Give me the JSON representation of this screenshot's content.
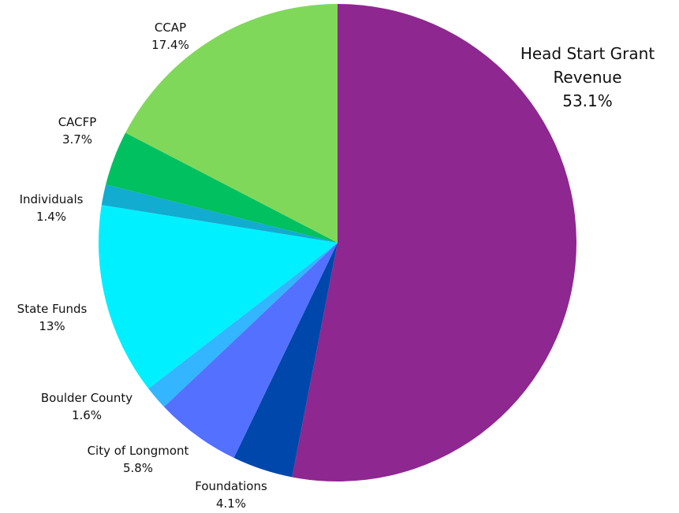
{
  "chart_data": {
    "type": "pie",
    "categories": [
      "Head Start Grant Revenue",
      "Foundations",
      "City of Longmont",
      "Boulder County",
      "State Funds",
      "Individuals",
      "CACFP",
      "CCAP"
    ],
    "values": [
      53.1,
      4.1,
      5.8,
      1.6,
      13,
      1.4,
      3.7,
      17.4
    ],
    "value_labels": [
      "53.1%",
      "4.1%",
      "5.8%",
      "1.6%",
      "13%",
      "1.4%",
      "3.7%",
      "17.4%"
    ],
    "colors": [
      "#8e278f",
      "#0047ab",
      "#5470ff",
      "#33b5ff",
      "#00f0ff",
      "#11acd0",
      "#00c060",
      "#80d85a"
    ]
  }
}
